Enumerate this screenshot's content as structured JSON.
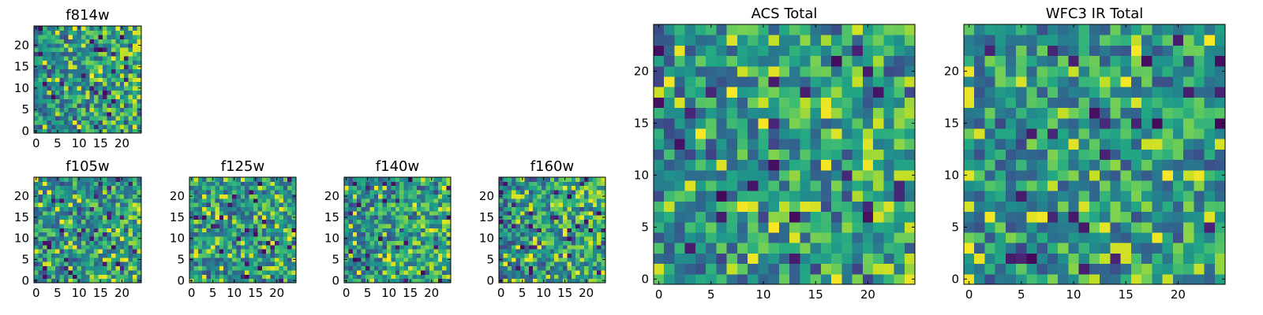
{
  "chart_data": [
    {
      "type": "heatmap",
      "title": "f814w",
      "grid_size": 25,
      "xlim": [
        0,
        24
      ],
      "ylim": [
        0,
        24
      ],
      "xticks": [
        0,
        5,
        10,
        15,
        20
      ],
      "yticks": [
        0,
        5,
        10,
        15,
        20
      ],
      "colormap": "viridis",
      "seed": 11,
      "trend": 0.5
    },
    {
      "type": "heatmap",
      "title": "f105w",
      "grid_size": 25,
      "xlim": [
        0,
        24
      ],
      "ylim": [
        0,
        24
      ],
      "xticks": [
        0,
        5,
        10,
        15,
        20
      ],
      "yticks": [
        0,
        5,
        10,
        15,
        20
      ],
      "colormap": "viridis",
      "seed": 23,
      "trend": 0.2
    },
    {
      "type": "heatmap",
      "title": "f125w",
      "grid_size": 25,
      "xlim": [
        0,
        24
      ],
      "ylim": [
        0,
        24
      ],
      "xticks": [
        0,
        5,
        10,
        15,
        20
      ],
      "yticks": [
        0,
        5,
        10,
        15,
        20
      ],
      "colormap": "viridis",
      "seed": 37,
      "trend": 0.1
    },
    {
      "type": "heatmap",
      "title": "f140w",
      "grid_size": 25,
      "xlim": [
        0,
        24
      ],
      "ylim": [
        0,
        24
      ],
      "xticks": [
        0,
        5,
        10,
        15,
        20
      ],
      "yticks": [
        0,
        5,
        10,
        15,
        20
      ],
      "colormap": "viridis",
      "seed": 41,
      "trend": 0.4
    },
    {
      "type": "heatmap",
      "title": "f160w",
      "grid_size": 25,
      "xlim": [
        0,
        24
      ],
      "ylim": [
        0,
        24
      ],
      "xticks": [
        0,
        5,
        10,
        15,
        20
      ],
      "yticks": [
        0,
        5,
        10,
        15,
        20
      ],
      "colormap": "viridis",
      "seed": 53,
      "trend": 0.4
    },
    {
      "type": "heatmap",
      "title": "ACS Total",
      "grid_size": 25,
      "xlim": [
        0,
        24
      ],
      "ylim": [
        0,
        24
      ],
      "xticks": [
        0,
        5,
        10,
        15,
        20
      ],
      "yticks": [
        0,
        5,
        10,
        15,
        20
      ],
      "colormap": "viridis",
      "seed": 67,
      "trend": 0.35
    },
    {
      "type": "heatmap",
      "title": "WFC3 IR Total",
      "grid_size": 25,
      "xlim": [
        0,
        24
      ],
      "ylim": [
        0,
        24
      ],
      "xticks": [
        0,
        5,
        10,
        15,
        20
      ],
      "yticks": [
        0,
        5,
        10,
        15,
        20
      ],
      "colormap": "viridis",
      "seed": 79,
      "trend": 0.1
    }
  ]
}
